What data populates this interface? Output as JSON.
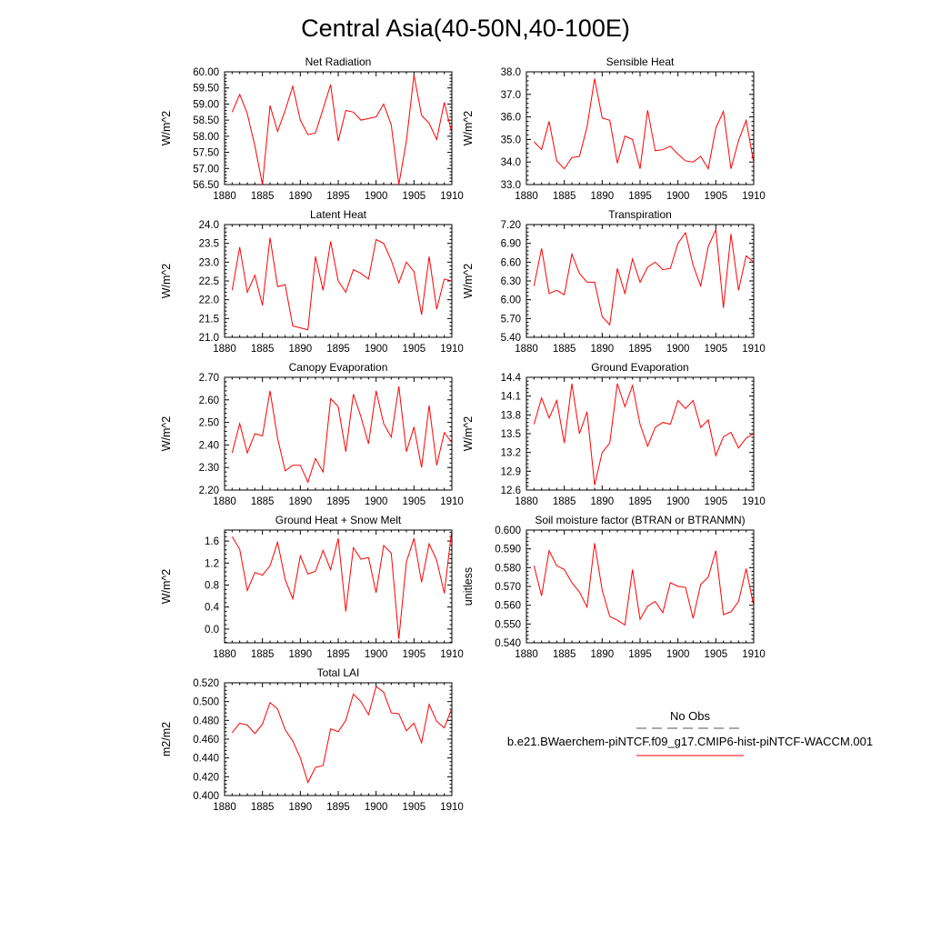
{
  "figure": {
    "title": "Central Asia(40-50N,40-100E)"
  },
  "chart_data": [
    {
      "type": "line",
      "title": "Net Radiation",
      "ylabel": "W/m^2",
      "xlim": [
        1880,
        1910
      ],
      "ylim": [
        56.5,
        60.0
      ],
      "xticks": [
        "1880",
        "1885",
        "1890",
        "1895",
        "1900",
        "1905",
        "1910"
      ],
      "yticks": [
        "56.50",
        "57.00",
        "57.50",
        "58.00",
        "58.50",
        "59.00",
        "59.50",
        "60.00"
      ],
      "series": [
        {
          "color": "#ff0000",
          "x": [
            1881,
            1882,
            1883,
            1884,
            1885,
            1886,
            1887,
            1888,
            1889,
            1890,
            1891,
            1892,
            1893,
            1894,
            1895,
            1896,
            1897,
            1898,
            1899,
            1900,
            1901,
            1902,
            1903,
            1904,
            1905,
            1906,
            1907,
            1908,
            1909,
            1910
          ],
          "y": [
            58.75,
            59.3,
            58.7,
            57.7,
            56.5,
            58.95,
            58.15,
            58.8,
            59.55,
            58.5,
            58.05,
            58.1,
            58.85,
            59.6,
            57.85,
            58.8,
            58.75,
            58.5,
            58.55,
            58.6,
            59.0,
            58.35,
            56.5,
            57.85,
            59.9,
            58.65,
            58.4,
            57.9,
            59.05,
            58.1
          ]
        }
      ]
    },
    {
      "type": "line",
      "title": "Sensible Heat",
      "ylabel": "W/m^2",
      "xlim": [
        1880,
        1910
      ],
      "ylim": [
        33.0,
        38.0
      ],
      "xticks": [
        "1880",
        "1885",
        "1890",
        "1895",
        "1900",
        "1905",
        "1910"
      ],
      "yticks": [
        "33.0",
        "34.0",
        "35.0",
        "36.0",
        "37.0",
        "38.0"
      ],
      "series": [
        {
          "color": "#ff0000",
          "x": [
            1881,
            1882,
            1883,
            1884,
            1885,
            1886,
            1887,
            1888,
            1889,
            1890,
            1891,
            1892,
            1893,
            1894,
            1895,
            1896,
            1897,
            1898,
            1899,
            1900,
            1901,
            1902,
            1903,
            1904,
            1905,
            1906,
            1907,
            1908,
            1909,
            1910
          ],
          "y": [
            34.9,
            34.55,
            35.8,
            34.05,
            33.7,
            34.2,
            34.25,
            35.55,
            37.7,
            35.95,
            35.85,
            33.95,
            35.15,
            35.0,
            33.7,
            36.3,
            34.5,
            34.55,
            34.7,
            34.35,
            34.05,
            34.0,
            34.25,
            33.7,
            35.5,
            36.25,
            33.7,
            34.95,
            35.85,
            33.95
          ]
        }
      ]
    },
    {
      "type": "line",
      "title": "Latent Heat",
      "ylabel": "W/m^2",
      "xlim": [
        1880,
        1910
      ],
      "ylim": [
        21.0,
        24.0
      ],
      "xticks": [
        "1880",
        "1885",
        "1890",
        "1895",
        "1900",
        "1905",
        "1910"
      ],
      "yticks": [
        "21.0",
        "21.5",
        "22.0",
        "22.5",
        "23.0",
        "23.5",
        "24.0"
      ],
      "series": [
        {
          "color": "#ff0000",
          "x": [
            1881,
            1882,
            1883,
            1884,
            1885,
            1886,
            1887,
            1888,
            1889,
            1890,
            1891,
            1892,
            1893,
            1894,
            1895,
            1896,
            1897,
            1898,
            1899,
            1900,
            1901,
            1902,
            1903,
            1904,
            1905,
            1906,
            1907,
            1908,
            1909,
            1910
          ],
          "y": [
            22.25,
            23.4,
            22.2,
            22.65,
            21.85,
            23.65,
            22.35,
            22.4,
            21.3,
            21.25,
            21.2,
            23.15,
            22.25,
            23.55,
            22.5,
            22.2,
            22.8,
            22.7,
            22.55,
            23.6,
            23.5,
            23.05,
            22.45,
            23.0,
            22.75,
            21.6,
            23.15,
            21.75,
            22.55,
            22.5
          ]
        }
      ]
    },
    {
      "type": "line",
      "title": "Transpiration",
      "ylabel": "W/m^2",
      "xlim": [
        1880,
        1910
      ],
      "ylim": [
        5.4,
        7.2
      ],
      "xticks": [
        "1880",
        "1885",
        "1890",
        "1895",
        "1900",
        "1905",
        "1910"
      ],
      "yticks": [
        "5.40",
        "5.70",
        "6.00",
        "6.30",
        "6.60",
        "6.90",
        "7.20"
      ],
      "series": [
        {
          "color": "#ff0000",
          "x": [
            1881,
            1882,
            1883,
            1884,
            1885,
            1886,
            1887,
            1888,
            1889,
            1890,
            1891,
            1892,
            1893,
            1894,
            1895,
            1896,
            1897,
            1898,
            1899,
            1900,
            1901,
            1902,
            1903,
            1904,
            1905,
            1906,
            1907,
            1908,
            1909,
            1910
          ],
          "y": [
            6.22,
            6.82,
            6.1,
            6.15,
            6.08,
            6.73,
            6.42,
            6.28,
            6.28,
            5.73,
            5.6,
            6.5,
            6.1,
            6.65,
            6.28,
            6.52,
            6.6,
            6.48,
            6.5,
            6.9,
            7.07,
            6.55,
            6.22,
            6.85,
            7.12,
            5.87,
            7.05,
            6.15,
            6.7,
            6.6
          ]
        }
      ]
    },
    {
      "type": "line",
      "title": "Canopy Evaporation",
      "ylabel": "W/m^2",
      "xlim": [
        1880,
        1910
      ],
      "ylim": [
        2.2,
        2.7
      ],
      "xticks": [
        "1880",
        "1885",
        "1890",
        "1895",
        "1900",
        "1905",
        "1910"
      ],
      "yticks": [
        "2.20",
        "2.30",
        "2.40",
        "2.50",
        "2.60",
        "2.70"
      ],
      "series": [
        {
          "color": "#ff0000",
          "x": [
            1881,
            1882,
            1883,
            1884,
            1885,
            1886,
            1887,
            1888,
            1889,
            1890,
            1891,
            1892,
            1893,
            1894,
            1895,
            1896,
            1897,
            1898,
            1899,
            1900,
            1901,
            1902,
            1903,
            1904,
            1905,
            1906,
            1907,
            1908,
            1909,
            1910
          ],
          "y": [
            2.365,
            2.495,
            2.365,
            2.45,
            2.44,
            2.64,
            2.43,
            2.285,
            2.31,
            2.31,
            2.235,
            2.34,
            2.28,
            2.605,
            2.57,
            2.37,
            2.625,
            2.525,
            2.405,
            2.64,
            2.495,
            2.435,
            2.66,
            2.37,
            2.48,
            2.3,
            2.575,
            2.31,
            2.455,
            2.41
          ]
        }
      ]
    },
    {
      "type": "line",
      "title": "Ground Evaporation",
      "ylabel": "W/m^2",
      "xlim": [
        1880,
        1910
      ],
      "ylim": [
        12.6,
        14.4
      ],
      "xticks": [
        "1880",
        "1885",
        "1890",
        "1895",
        "1900",
        "1905",
        "1910"
      ],
      "yticks": [
        "12.6",
        "12.9",
        "13.2",
        "13.5",
        "13.8",
        "14.1",
        "14.4"
      ],
      "series": [
        {
          "color": "#ff0000",
          "x": [
            1881,
            1882,
            1883,
            1884,
            1885,
            1886,
            1887,
            1888,
            1889,
            1890,
            1891,
            1892,
            1893,
            1894,
            1895,
            1896,
            1897,
            1898,
            1899,
            1900,
            1901,
            1902,
            1903,
            1904,
            1905,
            1906,
            1907,
            1908,
            1909,
            1910
          ],
          "y": [
            13.65,
            14.07,
            13.75,
            14.03,
            13.35,
            14.3,
            13.5,
            13.85,
            12.68,
            13.2,
            13.35,
            14.3,
            13.93,
            14.27,
            13.65,
            13.3,
            13.6,
            13.68,
            13.65,
            14.03,
            13.9,
            14.03,
            13.6,
            13.72,
            13.15,
            13.45,
            13.52,
            13.27,
            13.43,
            13.5
          ]
        }
      ]
    },
    {
      "type": "line",
      "title": "Ground Heat + Snow Melt",
      "ylabel": "W/m^2",
      "xlim": [
        1880,
        1910
      ],
      "ylim": [
        -0.25,
        1.8
      ],
      "xticks": [
        "1880",
        "1885",
        "1890",
        "1895",
        "1900",
        "1905",
        "1910"
      ],
      "yticks": [
        "0.0",
        "0.4",
        "0.8",
        "1.2",
        "1.6"
      ],
      "series": [
        {
          "color": "#ff0000",
          "x": [
            1881,
            1882,
            1883,
            1884,
            1885,
            1886,
            1887,
            1888,
            1889,
            1890,
            1891,
            1892,
            1893,
            1894,
            1895,
            1896,
            1897,
            1898,
            1899,
            1900,
            1901,
            1902,
            1903,
            1904,
            1905,
            1906,
            1907,
            1908,
            1909,
            1910
          ],
          "y": [
            1.68,
            1.45,
            0.7,
            1.03,
            0.98,
            1.15,
            1.58,
            0.9,
            0.55,
            1.33,
            1.0,
            1.05,
            1.43,
            1.08,
            1.65,
            0.32,
            1.48,
            1.27,
            1.3,
            0.66,
            1.52,
            1.38,
            -0.18,
            1.22,
            1.65,
            0.85,
            1.55,
            1.25,
            0.65,
            1.82
          ]
        }
      ]
    },
    {
      "type": "line",
      "title": "Soil moisture factor (BTRAN or BTRANMN)",
      "ylabel": "unitless",
      "xlim": [
        1880,
        1910
      ],
      "ylim": [
        0.54,
        0.6
      ],
      "xticks": [
        "1880",
        "1885",
        "1890",
        "1895",
        "1900",
        "1905",
        "1910"
      ],
      "yticks": [
        "0.540",
        "0.550",
        "0.560",
        "0.570",
        "0.580",
        "0.590",
        "0.600"
      ],
      "series": [
        {
          "color": "#ff0000",
          "x": [
            1881,
            1882,
            1883,
            1884,
            1885,
            1886,
            1887,
            1888,
            1889,
            1890,
            1891,
            1892,
            1893,
            1894,
            1895,
            1896,
            1897,
            1898,
            1899,
            1900,
            1901,
            1902,
            1903,
            1904,
            1905,
            1906,
            1907,
            1908,
            1909,
            1910
          ],
          "y": [
            0.581,
            0.565,
            0.589,
            0.581,
            0.579,
            0.572,
            0.567,
            0.559,
            0.593,
            0.568,
            0.554,
            0.552,
            0.5495,
            0.579,
            0.5525,
            0.5595,
            0.562,
            0.556,
            0.572,
            0.57,
            0.5695,
            0.553,
            0.571,
            0.575,
            0.589,
            0.555,
            0.5565,
            0.562,
            0.5795,
            0.5595
          ]
        }
      ]
    },
    {
      "type": "line",
      "title": "Total LAI",
      "ylabel": "m2/m2",
      "xlim": [
        1880,
        1910
      ],
      "ylim": [
        0.4,
        0.52
      ],
      "xticks": [
        "1880",
        "1885",
        "1890",
        "1895",
        "1900",
        "1905",
        "1910"
      ],
      "yticks": [
        "0.400",
        "0.420",
        "0.440",
        "0.460",
        "0.480",
        "0.500",
        "0.520"
      ],
      "series": [
        {
          "color": "#ff0000",
          "x": [
            1881,
            1882,
            1883,
            1884,
            1885,
            1886,
            1887,
            1888,
            1889,
            1890,
            1891,
            1892,
            1893,
            1894,
            1895,
            1896,
            1897,
            1898,
            1899,
            1900,
            1901,
            1902,
            1903,
            1904,
            1905,
            1906,
            1907,
            1908,
            1909,
            1910
          ],
          "y": [
            0.467,
            0.477,
            0.475,
            0.466,
            0.476,
            0.499,
            0.492,
            0.47,
            0.458,
            0.44,
            0.414,
            0.43,
            0.432,
            0.471,
            0.468,
            0.48,
            0.508,
            0.5,
            0.486,
            0.516,
            0.51,
            0.488,
            0.487,
            0.469,
            0.477,
            0.456,
            0.497,
            0.479,
            0.472,
            0.493
          ]
        }
      ]
    }
  ],
  "legend": {
    "obs_label": "No Obs",
    "obs_color": "#555555",
    "model_label": "b.e21.BWaerchem-piNTCF.f09_g17.CMIP6-hist-piNTCF-WACCM.001",
    "model_color": "#ff0000"
  }
}
